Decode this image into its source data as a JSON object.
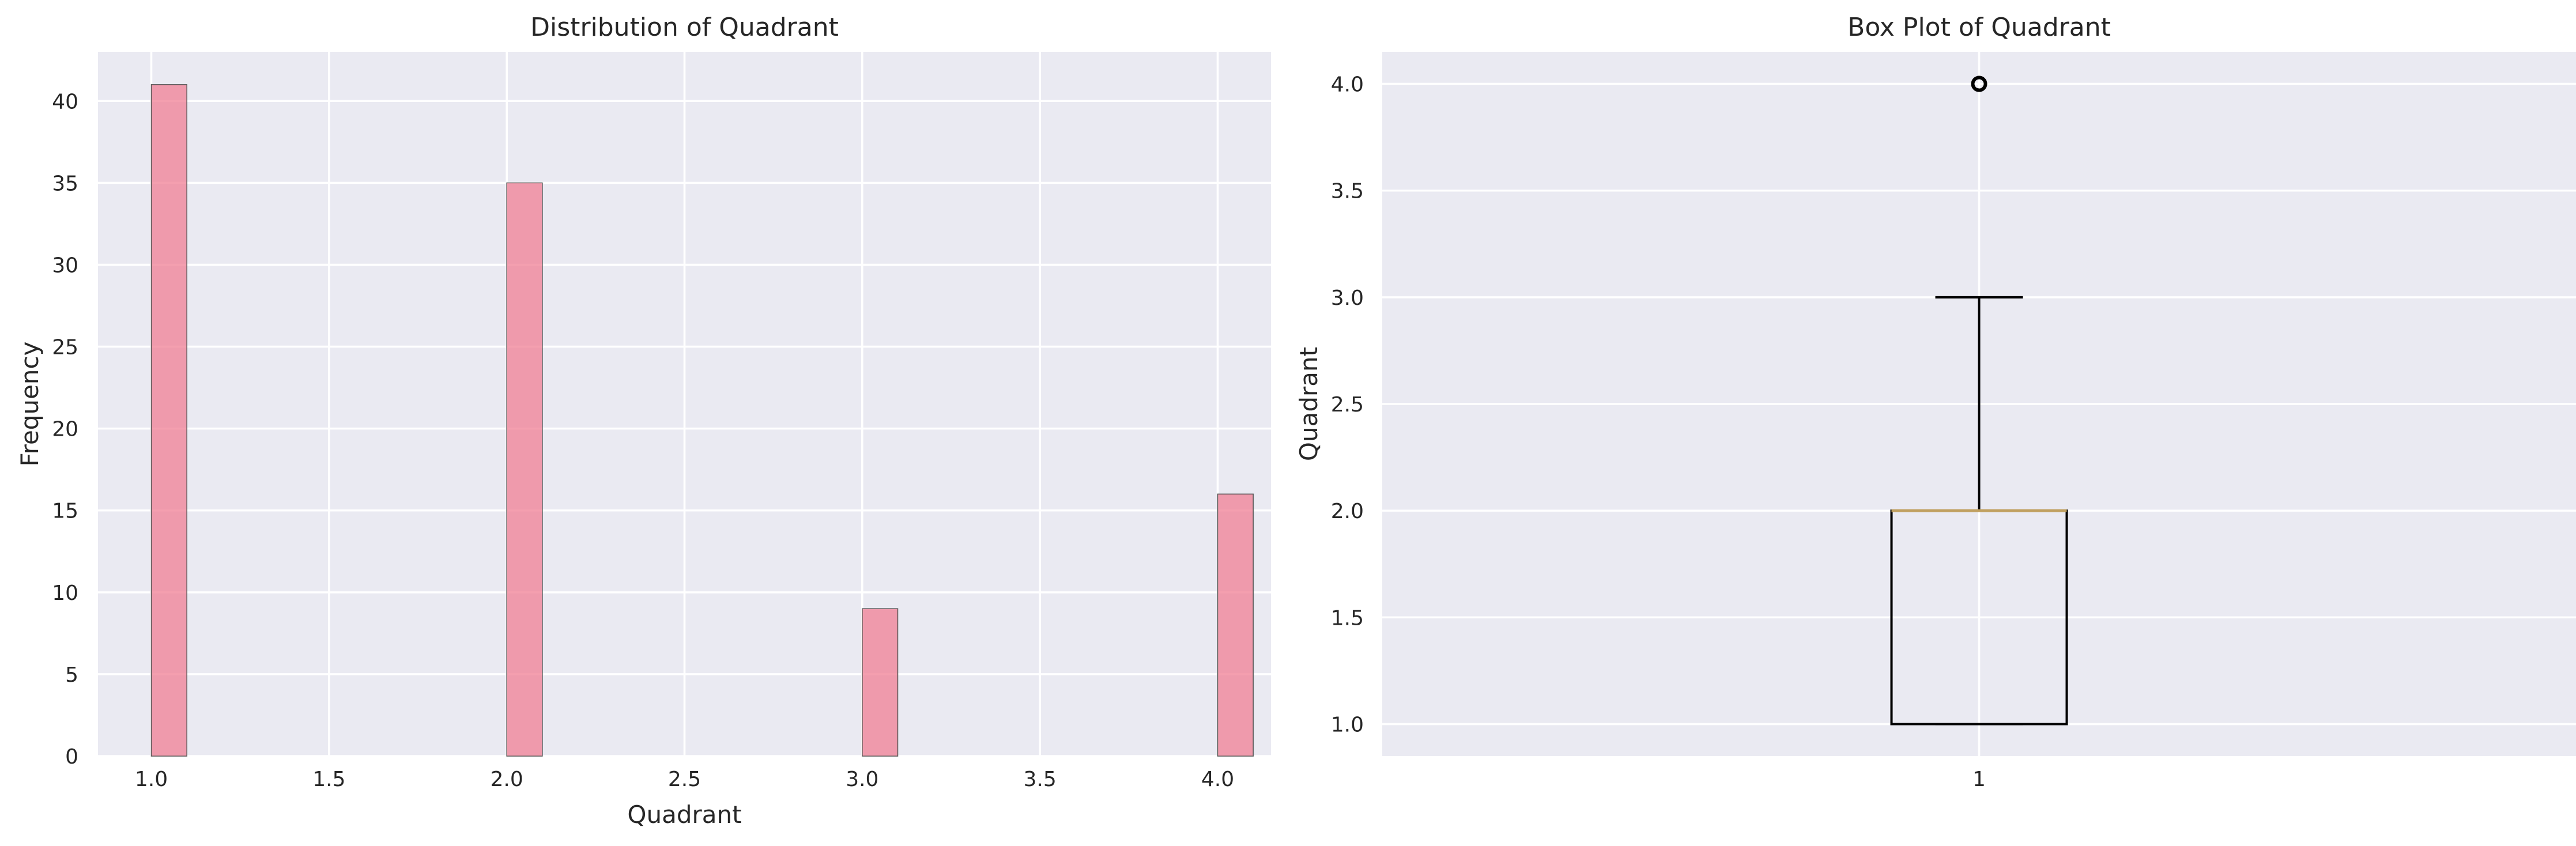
{
  "chart_data": [
    {
      "type": "bar",
      "title": "Distribution of Quadrant",
      "xlabel": "Quadrant",
      "ylabel": "Frequency",
      "x": [
        1.0,
        2.0,
        3.0,
        4.0
      ],
      "values": [
        41,
        35,
        9,
        16
      ],
      "bin_width": 0.1,
      "xlim": [
        0.85,
        4.15
      ],
      "ylim": [
        0,
        43
      ],
      "xticks": [
        1.0,
        1.5,
        2.0,
        2.5,
        3.0,
        3.5,
        4.0
      ],
      "xtick_labels": [
        "1.0",
        "1.5",
        "2.0",
        "2.5",
        "3.0",
        "3.5",
        "4.0"
      ],
      "yticks": [
        0,
        5,
        10,
        15,
        20,
        25,
        30,
        35,
        40
      ],
      "ytick_labels": [
        "0",
        "5",
        "10",
        "15",
        "20",
        "25",
        "30",
        "35",
        "40"
      ],
      "grid": true,
      "bar_color": "#f07f94"
    },
    {
      "type": "box",
      "title": "Box Plot of Quadrant",
      "xlabel": "",
      "ylabel": "Quadrant",
      "categories": [
        "1"
      ],
      "box": {
        "whisker_low": 1.0,
        "q1": 1.0,
        "median": 2.0,
        "q3": 2.0,
        "whisker_high": 3.0,
        "outliers": [
          4.0
        ]
      },
      "ylim": [
        0.85,
        4.15
      ],
      "yticks": [
        1.0,
        1.5,
        2.0,
        2.5,
        3.0,
        3.5,
        4.0
      ],
      "ytick_labels": [
        "1.0",
        "1.5",
        "2.0",
        "2.5",
        "3.0",
        "3.5",
        "4.0"
      ],
      "grid": true,
      "median_color": "#c0a060"
    }
  ]
}
